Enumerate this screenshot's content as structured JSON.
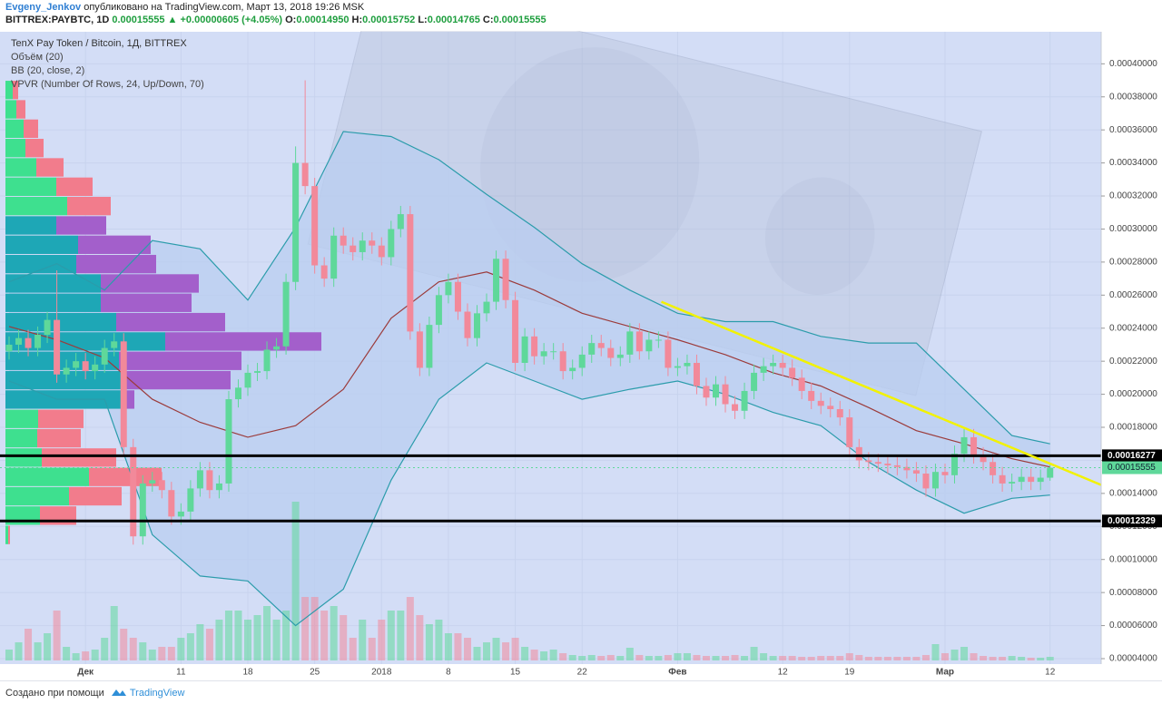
{
  "header": {
    "author": "Evgeny_Jenkov",
    "published": "опубликовано на TradingView.com, Март 13, 2018 19:26 MSK",
    "symbol": "BITTREX:PAYBTC, 1D",
    "last": "0.00015555",
    "change": "▲ +0.00000605 (+4.05%)",
    "o_label": "O:",
    "o": "0.00014950",
    "h_label": "H:",
    "h": "0.00015752",
    "l_label": "L:",
    "l": "0.00014765",
    "c_label": "C:",
    "c": "0.00015555"
  },
  "footer": {
    "text": "Создано при помощи",
    "brand": "TradingView"
  },
  "chart_data": {
    "type": "candlestick",
    "title": "TenX Pay Token / Bitcoin, 1Д, BITTREX",
    "indicators": [
      "Объём (20)",
      "BB (20, close, 2)",
      "VPVR (Number Of Rows, 24, Up/Down, 70)"
    ],
    "up_color": "#5fd89a",
    "down_color": "#f2899a",
    "grid": true,
    "xlim": [
      -0.95,
      114.35
    ],
    "xticks": [
      {
        "value": 8,
        "label": "Дек"
      },
      {
        "value": 18,
        "label": "11"
      },
      {
        "value": 25,
        "label": "18"
      },
      {
        "value": 32,
        "label": "25"
      },
      {
        "value": 39,
        "label": "2018"
      },
      {
        "value": 46,
        "label": "8"
      },
      {
        "value": 53,
        "label": "15"
      },
      {
        "value": 60,
        "label": "22"
      },
      {
        "value": 70,
        "label": "Фев"
      },
      {
        "value": 81,
        "label": "12"
      },
      {
        "value": 88,
        "label": "19"
      },
      {
        "value": 98,
        "label": "Мар"
      },
      {
        "value": 109,
        "label": "12"
      }
    ],
    "ylim": [
      3.67e-05,
      0.0004194
    ],
    "yticks": [
      {
        "value": 4e-05,
        "label": "0.00004000"
      },
      {
        "value": 6e-05,
        "label": "0.00006000"
      },
      {
        "value": 8e-05,
        "label": "0.00008000"
      },
      {
        "value": 0.0001,
        "label": "0.00010000"
      },
      {
        "value": 0.00012,
        "label": "0.00012000"
      },
      {
        "value": 0.00014,
        "label": "0.00014000"
      },
      {
        "value": 0.00016,
        "label": "0.00016000"
      },
      {
        "value": 0.00018,
        "label": "0.00018000"
      },
      {
        "value": 0.0002,
        "label": "0.00020000"
      },
      {
        "value": 0.00022,
        "label": "0.00022000"
      },
      {
        "value": 0.00024,
        "label": "0.00024000"
      },
      {
        "value": 0.00026,
        "label": "0.00026000"
      },
      {
        "value": 0.00028,
        "label": "0.00028000"
      },
      {
        "value": 0.0003,
        "label": "0.00030000"
      },
      {
        "value": 0.00032,
        "label": "0.00032000"
      },
      {
        "value": 0.00034,
        "label": "0.00034000"
      },
      {
        "value": 0.00036,
        "label": "0.00036000"
      },
      {
        "value": 0.00038,
        "label": "0.00038000"
      },
      {
        "value": 0.0004,
        "label": "0.00040000"
      }
    ],
    "open": [
      0.000226,
      0.00023,
      0.000234,
      0.000228,
      0.000236,
      0.000245,
      0.000212,
      0.000216,
      0.00022,
      0.000214,
      0.000218,
      0.000228,
      0.000232,
      0.000168,
      0.000114,
      0.000146,
      0.000148,
      0.000142,
      0.000126,
      0.000129,
      0.000143,
      0.000154,
      0.000142,
      0.000146,
      0.000197,
      0.000204,
      0.000213,
      0.000214,
      0.000227,
      0.000229,
      0.000268,
      0.00034,
      0.000326,
      0.000278,
      0.00027,
      0.000296,
      0.00029,
      0.000286,
      0.000293,
      0.00029,
      0.000283,
      0.0003,
      0.000309,
      0.000238,
      0.000216,
      0.000242,
      0.00026,
      0.000268,
      0.00025,
      0.000234,
      0.000249,
      0.000256,
      0.000282,
      0.000257,
      0.000219,
      0.000235,
      0.000223,
      0.000226,
      0.000226,
      0.000214,
      0.000216,
      0.000224,
      0.000231,
      0.000228,
      0.000222,
      0.000224,
      0.000238,
      0.000226,
      0.000233,
      0.000233,
      0.000216,
      0.000217,
      0.000219,
      0.000205,
      0.000198,
      0.000206,
      0.000194,
      0.00019,
      0.000202,
      0.000213,
      0.000217,
      0.000219,
      0.000216,
      0.00021,
      0.000202,
      0.000196,
      0.000193,
      0.000191,
      0.000186,
      0.000168,
      0.00016,
      0.000159,
      0.000158,
      0.000157,
      0.000156,
      0.000154,
      0.000152,
      0.000143,
      0.000153,
      0.000151,
      0.000164,
      0.000174,
      0.000163,
      0.000159,
      0.000151,
      0.000146,
      0.000147,
      0.00015,
      0.000147,
      0.0001495
    ],
    "high": [
      0.000235,
      0.000239,
      0.000239,
      0.000241,
      0.00025,
      0.000275,
      0.000221,
      0.000225,
      0.000225,
      0.000223,
      0.000233,
      0.000237,
      0.000237,
      0.000173,
      0.000151,
      0.000153,
      0.000153,
      0.000147,
      0.000134,
      0.000148,
      0.000159,
      0.000159,
      0.000151,
      0.000202,
      0.000209,
      0.000218,
      0.000219,
      0.000232,
      0.000234,
      0.000273,
      0.00035,
      0.00039,
      0.000331,
      0.000283,
      0.000301,
      0.000301,
      0.000295,
      0.000298,
      0.000298,
      0.000295,
      0.000305,
      0.000314,
      0.000314,
      0.000243,
      0.000247,
      0.000265,
      0.000273,
      0.000273,
      0.000255,
      0.000254,
      0.000261,
      0.000287,
      0.000287,
      0.000262,
      0.00024,
      0.00024,
      0.000231,
      0.000231,
      0.000231,
      0.000221,
      0.000229,
      0.000236,
      0.000236,
      0.000233,
      0.000229,
      0.000243,
      0.000243,
      0.000238,
      0.000238,
      0.000238,
      0.000222,
      0.000224,
      0.000224,
      0.00021,
      0.000211,
      0.000211,
      0.000199,
      0.000207,
      0.000218,
      0.000222,
      0.000224,
      0.000224,
      0.000221,
      0.000215,
      0.000207,
      0.000201,
      0.000198,
      0.000196,
      0.000191,
      0.000173,
      0.000165,
      0.000164,
      0.000163,
      0.000162,
      0.000161,
      0.000159,
      0.000157,
      0.000158,
      0.000158,
      0.000169,
      0.000179,
      0.000179,
      0.000168,
      0.000164,
      0.000156,
      0.000152,
      0.000155,
      0.000155,
      0.0001545,
      0.00015752
    ],
    "low": [
      0.000221,
      0.000225,
      0.000223,
      0.000223,
      0.000231,
      0.000207,
      0.000207,
      0.000211,
      0.000209,
      0.000209,
      0.000213,
      0.000223,
      0.000163,
      0.000109,
      0.000109,
      0.000141,
      0.000137,
      0.000121,
      0.000121,
      0.000124,
      0.000138,
      0.000137,
      0.000137,
      0.000141,
      0.000192,
      0.000199,
      0.000208,
      0.000209,
      0.000222,
      0.000224,
      0.000263,
      0.000321,
      0.000273,
      0.000265,
      0.000265,
      0.000285,
      0.000281,
      0.000281,
      0.000285,
      0.000278,
      0.000278,
      0.000295,
      0.000233,
      0.000211,
      0.000211,
      0.000237,
      0.000255,
      0.000245,
      0.000229,
      0.000229,
      0.000244,
      0.000251,
      0.000252,
      0.000214,
      0.000214,
      0.000218,
      0.000218,
      0.000221,
      0.000209,
      0.000209,
      0.000211,
      0.000219,
      0.000223,
      0.000217,
      0.000217,
      0.000219,
      0.000221,
      0.000221,
      0.000228,
      0.000211,
      0.000211,
      0.000212,
      0.0002,
      0.000193,
      0.000193,
      0.000189,
      0.000185,
      0.000185,
      0.000197,
      0.000208,
      0.000212,
      0.000211,
      0.000205,
      0.000197,
      0.000191,
      0.000188,
      0.000186,
      0.000181,
      0.000163,
      0.000155,
      0.000154,
      0.000153,
      0.000152,
      0.000151,
      0.000149,
      0.000147,
      0.000138,
      0.000138,
      0.000146,
      0.000146,
      0.000159,
      0.000158,
      0.000154,
      0.000146,
      0.000141,
      0.000141,
      0.000142,
      0.000142,
      0.000142,
      0.00014765
    ],
    "close": [
      0.00023,
      0.000234,
      0.000228,
      0.000236,
      0.000245,
      0.000212,
      0.000216,
      0.00022,
      0.000214,
      0.000218,
      0.000228,
      0.000232,
      0.000168,
      0.000114,
      0.000146,
      0.000148,
      0.000142,
      0.000126,
      0.000129,
      0.000143,
      0.000154,
      0.000142,
      0.000146,
      0.000197,
      0.000204,
      0.000213,
      0.000214,
      0.000227,
      0.000229,
      0.000268,
      0.00034,
      0.000326,
      0.000278,
      0.00027,
      0.000296,
      0.00029,
      0.000286,
      0.000293,
      0.00029,
      0.000283,
      0.0003,
      0.000309,
      0.000238,
      0.000216,
      0.000242,
      0.00026,
      0.000268,
      0.00025,
      0.000234,
      0.000249,
      0.000256,
      0.000282,
      0.000257,
      0.000219,
      0.000235,
      0.000223,
      0.000226,
      0.000226,
      0.000214,
      0.000216,
      0.000224,
      0.000231,
      0.000228,
      0.000222,
      0.000224,
      0.000238,
      0.000226,
      0.000233,
      0.000233,
      0.000216,
      0.000217,
      0.000219,
      0.000205,
      0.000198,
      0.000206,
      0.000194,
      0.00019,
      0.000202,
      0.000213,
      0.000217,
      0.000219,
      0.000216,
      0.00021,
      0.000202,
      0.000196,
      0.000193,
      0.000191,
      0.000186,
      0.000168,
      0.00016,
      0.000159,
      0.000158,
      0.000157,
      0.000156,
      0.000154,
      0.000152,
      0.000143,
      0.000153,
      0.000151,
      0.000164,
      0.000174,
      0.000163,
      0.000159,
      0.000151,
      0.000146,
      0.000147,
      0.00015,
      0.000147,
      0.0001495,
      0.00015555
    ],
    "volume": [
      12,
      20,
      35,
      20,
      30,
      55,
      15,
      8,
      10,
      12,
      25,
      60,
      35,
      25,
      20,
      12,
      15,
      15,
      25,
      30,
      40,
      35,
      45,
      55,
      55,
      45,
      50,
      60,
      45,
      55,
      175,
      70,
      70,
      55,
      60,
      50,
      25,
      45,
      25,
      45,
      55,
      55,
      70,
      50,
      40,
      45,
      30,
      30,
      25,
      15,
      20,
      25,
      20,
      25,
      15,
      12,
      10,
      12,
      8,
      6,
      5,
      6,
      5,
      6,
      5,
      14,
      6,
      5,
      5,
      6,
      8,
      8,
      6,
      5,
      5,
      5,
      6,
      5,
      15,
      8,
      5,
      5,
      5,
      4,
      4,
      5,
      5,
      5,
      8,
      6,
      4,
      4,
      4,
      4,
      4,
      4,
      6,
      18,
      8,
      12,
      15,
      8,
      5,
      4,
      4,
      5,
      4,
      3,
      3,
      4
    ],
    "bollinger": {
      "x": [
        0,
        5,
        10,
        15,
        20,
        25,
        30,
        35,
        40,
        45,
        50,
        55,
        60,
        65,
        70,
        75,
        80,
        85,
        90,
        95,
        100,
        105,
        109
      ],
      "upper": [
        0.000268,
        0.000279,
        0.000263,
        0.000293,
        0.000288,
        0.000257,
        0.000301,
        0.000359,
        0.000356,
        0.000342,
        0.000321,
        0.000301,
        0.000279,
        0.000263,
        0.000249,
        0.000244,
        0.000244,
        0.000235,
        0.000231,
        0.000231,
        0.000203,
        0.000175,
        0.00017
      ],
      "middle": [
        0.000241,
        0.000233,
        0.000222,
        0.000197,
        0.000183,
        0.000174,
        0.000181,
        0.000203,
        0.000246,
        0.000268,
        0.000274,
        0.000263,
        0.000249,
        0.000241,
        0.000233,
        0.000224,
        0.000213,
        0.000205,
        0.000192,
        0.000178,
        0.00017,
        0.000161,
        0.000156
      ],
      "lower": [
        0.000208,
        0.000197,
        0.000197,
        0.000115,
        9e-05,
        8.7e-05,
        6e-05,
        8.2e-05,
        0.000148,
        0.000197,
        0.000219,
        0.000208,
        0.000197,
        0.000203,
        0.000208,
        0.0002,
        0.000189,
        0.000181,
        0.000159,
        0.000142,
        0.000128,
        0.000137,
        0.000139
      ],
      "band_color": "#2b9cab",
      "middle_color": "#9b3b3b",
      "fill": "#b9cdf0"
    },
    "vpvr": {
      "up": [
        3,
        38,
        70,
        92,
        40,
        35,
        36,
        128,
        128,
        125,
        176,
        122,
        105,
        105,
        78,
        80,
        56,
        68,
        56,
        34,
        22,
        20,
        12,
        8
      ],
      "down": [
        2,
        40,
        58,
        80,
        82,
        48,
        50,
        14,
        120,
        135,
        172,
        120,
        100,
        108,
        88,
        80,
        55,
        48,
        40,
        30,
        20,
        16,
        10,
        6
      ],
      "value_area": [
        false,
        false,
        false,
        false,
        false,
        false,
        false,
        true,
        true,
        true,
        true,
        true,
        true,
        true,
        true,
        true,
        true,
        false,
        false,
        false,
        false,
        false,
        false,
        false
      ],
      "colors": {
        "up": "#3ee08f",
        "down": "#f27c8c",
        "va_up": "#1ea7b6",
        "va_down": "#a35fcb"
      }
    },
    "levels": [
      0.00016277,
      0.00012329
    ],
    "trendline": {
      "x": [
        68.3,
        114.4
      ],
      "y": [
        0.000256,
        0.000145
      ],
      "color": "#f2f200"
    }
  }
}
